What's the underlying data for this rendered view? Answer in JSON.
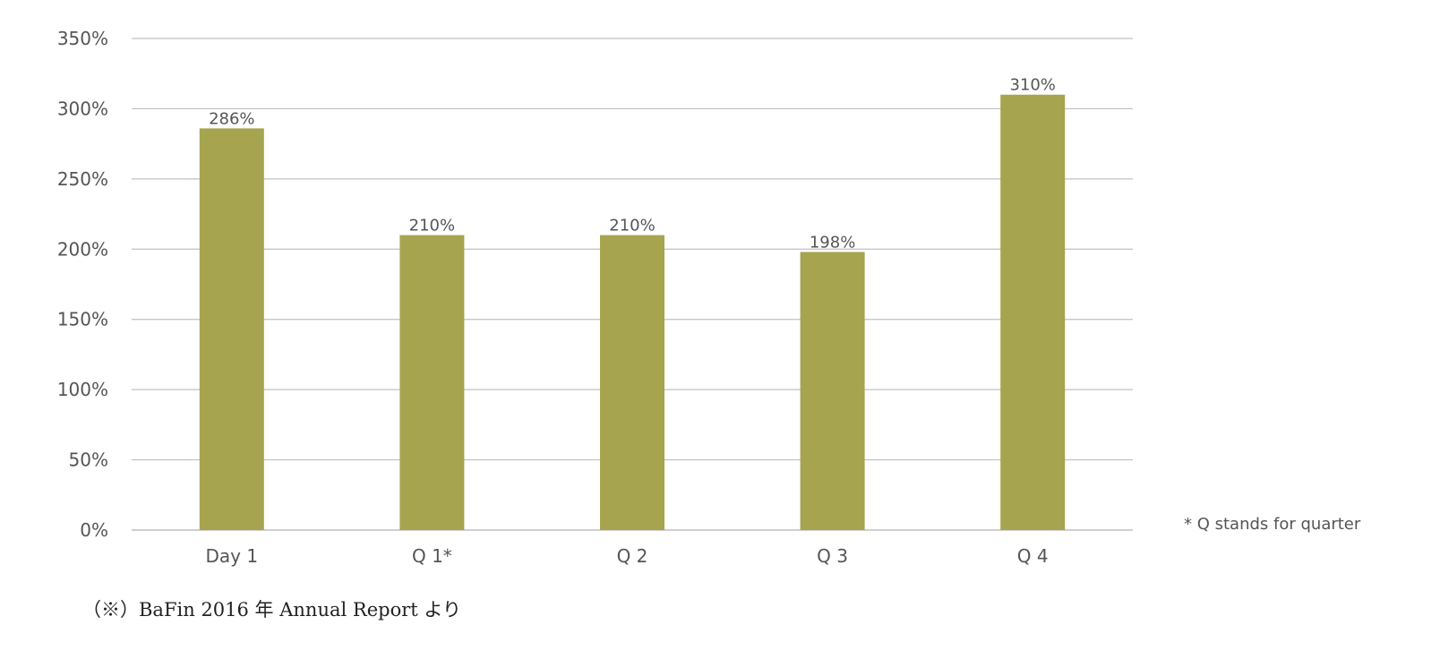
{
  "chart_data": {
    "type": "bar",
    "categories": [
      "Day 1",
      "Q 1*",
      "Q 2",
      "Q 3",
      "Q 4"
    ],
    "values": [
      286,
      210,
      210,
      198,
      310
    ],
    "data_labels": [
      "286%",
      "210%",
      "210%",
      "198%",
      "310%"
    ],
    "ylim": [
      0,
      350
    ],
    "y_ticks": [
      0,
      50,
      100,
      150,
      200,
      250,
      300,
      350
    ],
    "y_tick_labels": [
      "0%",
      "50%",
      "100%",
      "150%",
      "200%",
      "250%",
      "300%",
      "350%"
    ],
    "grid": true,
    "legend": "none",
    "bar_color": "#a6a44e",
    "grid_color": "#c0c0c0",
    "footnote": "* Q stands for quarter",
    "source_note": "（※）BaFin 2016 年 Annual Report より"
  }
}
